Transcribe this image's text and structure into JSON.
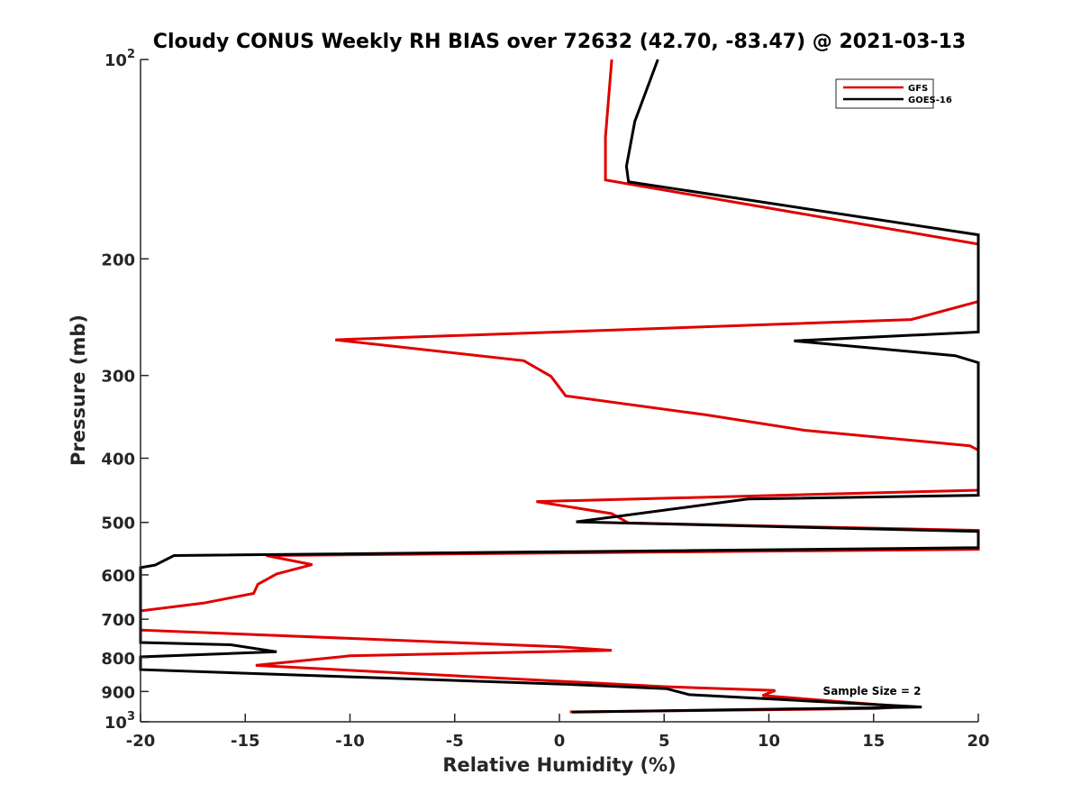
{
  "chart_data": {
    "type": "line",
    "title": "Cloudy CONUS Weekly RH BIAS over 72632 (42.70, -83.47) @ 2021-03-13",
    "xlabel": "Relative Humidity (%)",
    "ylabel": "Pressure (mb)",
    "xlim": [
      -20,
      20
    ],
    "ylim": [
      100,
      1000
    ],
    "y_scale": "log",
    "y_reversed": true,
    "x_ticks": [
      -20,
      -15,
      -10,
      -5,
      0,
      5,
      10,
      15,
      20
    ],
    "x_tick_labels": [
      "-20",
      "-15",
      "-10",
      "-5",
      "0",
      "5",
      "10",
      "15",
      "20"
    ],
    "y_ticks": [
      100,
      200,
      300,
      400,
      500,
      600,
      700,
      800,
      900,
      1000
    ],
    "y_tick_labels": [
      {
        "base": "10",
        "exp": "2"
      },
      {
        "base": "200",
        "exp": ""
      },
      {
        "base": "300",
        "exp": ""
      },
      {
        "base": "400",
        "exp": ""
      },
      {
        "base": "500",
        "exp": ""
      },
      {
        "base": "600",
        "exp": ""
      },
      {
        "base": "700",
        "exp": ""
      },
      {
        "base": "800",
        "exp": ""
      },
      {
        "base": "900",
        "exp": ""
      },
      {
        "base": "10",
        "exp": "3"
      }
    ],
    "grid": false,
    "legend_position": "top-right",
    "annotation": "Sample Size = 2",
    "series": [
      {
        "name": "GFS",
        "color": "#e00000",
        "x": [
          2.5,
          2.2,
          2.2,
          20,
          20,
          16.8,
          -10.7,
          -1.7,
          -0.4,
          0.3,
          7,
          11.7,
          19.6,
          20,
          20,
          -1.1,
          2.5,
          3.3,
          20,
          20,
          -14,
          -11.8,
          -13.5,
          -14.4,
          -14.6,
          -17,
          -20,
          -20,
          -0.1,
          2.5,
          -10,
          -14.5,
          5,
          10.3,
          9.7,
          16.5,
          15.1,
          0.5
        ],
        "y": [
          100,
          131,
          152,
          190,
          232,
          247,
          265,
          285,
          301,
          322,
          344,
          363,
          383,
          389,
          447,
          465,
          485,
          501,
          514,
          549,
          561,
          579,
          598,
          620,
          640,
          662,
          680,
          727,
          770,
          780,
          795,
          822,
          885,
          897,
          913,
          949,
          955,
          966
        ]
      },
      {
        "name": "GOES-16",
        "color": "#000000",
        "x": [
          4.7,
          3.6,
          3.2,
          3.3,
          20,
          20,
          11.2,
          18.9,
          20,
          20,
          9,
          0.8,
          20,
          20,
          -18.4,
          -19.3,
          -20,
          -20,
          -15.7,
          -13.5,
          -20,
          -20,
          0.5,
          5.1,
          6.2,
          17.3,
          0.6
        ],
        "y": [
          100,
          124,
          145,
          153,
          184,
          258,
          266,
          280,
          287,
          455,
          461,
          499,
          516,
          546,
          561,
          580,
          585,
          759,
          765,
          784,
          798,
          834,
          878,
          891,
          910,
          950,
          967
        ]
      }
    ]
  }
}
